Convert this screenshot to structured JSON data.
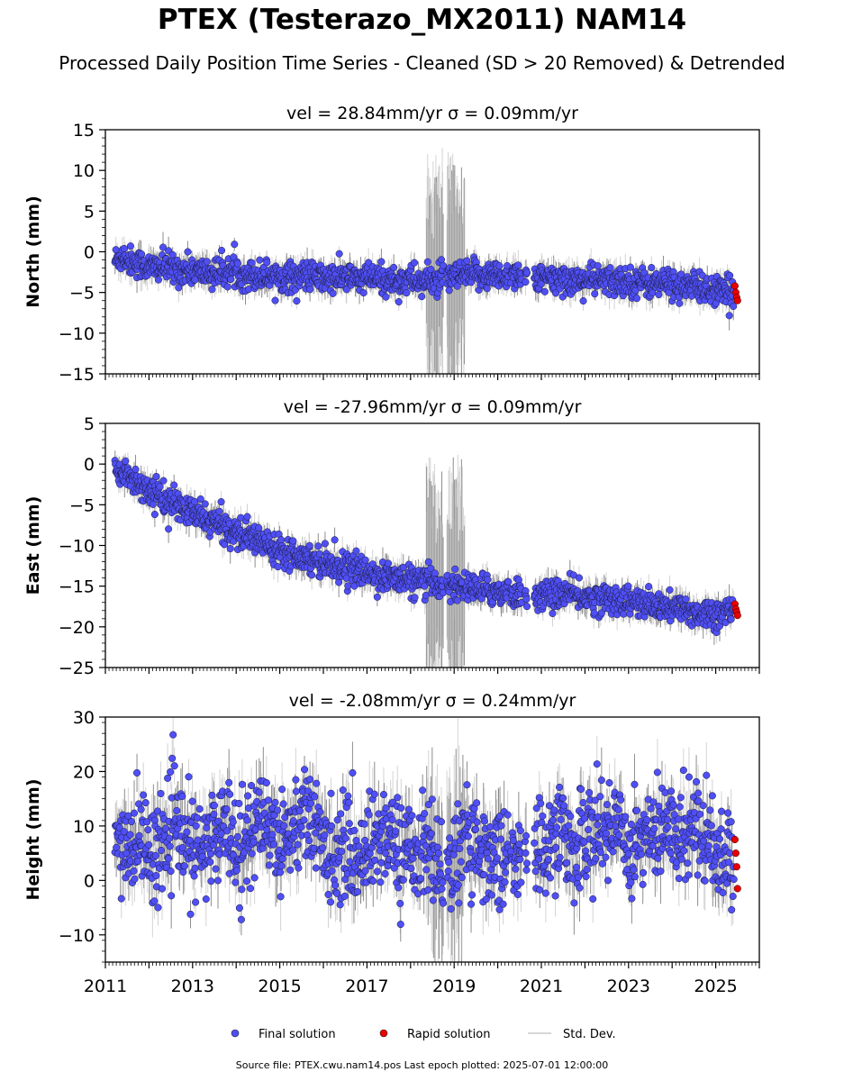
{
  "title": "PTEX (Testerazo_MX2011) NAM14",
  "subtitle": "Processed Daily Position Time Series - Cleaned (SD > 20 Removed) & Detrended",
  "footer": "Source file: PTEX.cwu.nam14.pos  Last epoch plotted: 2025-07-01 12:00:00",
  "legend": {
    "final": "Final solution",
    "rapid": "Rapid solution",
    "std": "Std. Dev."
  },
  "colors": {
    "final": "#4f4ff5",
    "rapid": "#e80000",
    "std": "#707070",
    "std_light": "#c8c8c8"
  },
  "chart_data": [
    {
      "type": "scatter",
      "component": "north",
      "title": "vel = 28.84mm/yr   σ = 0.09mm/yr",
      "ylabel": "North (mm)",
      "xlim": [
        2011.0,
        2026.0
      ],
      "ylim": [
        -15,
        15
      ],
      "yticks": [
        -15,
        -10,
        -5,
        0,
        5,
        10,
        15
      ],
      "xticks": [
        2011,
        2013,
        2015,
        2017,
        2019,
        2021,
        2023,
        2025
      ],
      "series": [
        {
          "name": "Final solution",
          "x": [
            2011.25,
            2011.4,
            2011.6,
            2011.8,
            2012.0,
            2012.3,
            2012.6,
            2012.9,
            2013.2,
            2013.5,
            2013.8,
            2014.1,
            2014.4,
            2014.7,
            2015.0,
            2015.3,
            2015.6,
            2015.9,
            2016.2,
            2016.5,
            2016.8,
            2017.1,
            2017.4,
            2017.7,
            2018.0,
            2018.3,
            2018.6,
            2018.9,
            2019.2,
            2019.5,
            2019.8,
            2020.1,
            2020.4,
            2020.9,
            2021.2,
            2021.5,
            2021.8,
            2022.1,
            2022.4,
            2022.7,
            2023.0,
            2023.3,
            2023.6,
            2023.9,
            2024.2,
            2024.5,
            2024.8,
            2025.1,
            2025.4
          ],
          "y": [
            -1.0,
            -0.5,
            -1.2,
            -1.5,
            -2.0,
            -1.8,
            -2.2,
            -2.3,
            -2.5,
            -2.7,
            -2.4,
            -2.6,
            -2.9,
            -2.8,
            -3.0,
            -3.1,
            -2.9,
            -3.2,
            -3.3,
            -3.1,
            -3.4,
            -3.2,
            -3.5,
            -3.6,
            -3.4,
            -3.7,
            -3.5,
            -3.2,
            -3.0,
            -2.8,
            -2.9,
            -3.0,
            -2.6,
            -3.4,
            -3.5,
            -3.3,
            -3.6,
            -3.4,
            -3.5,
            -3.7,
            -3.6,
            -3.8,
            -3.9,
            -3.8,
            -4.2,
            -4.3,
            -4.6,
            -5.0,
            -5.2
          ]
        },
        {
          "name": "Rapid solution",
          "x": [
            2025.44,
            2025.46,
            2025.48,
            2025.5
          ],
          "y": [
            -4.2,
            -5.0,
            -5.6,
            -6.0
          ]
        }
      ]
    },
    {
      "type": "scatter",
      "component": "east",
      "title": "vel = -27.96mm/yr   σ = 0.09mm/yr",
      "ylabel": "East (mm)",
      "xlim": [
        2011.0,
        2026.0
      ],
      "ylim": [
        -25,
        5
      ],
      "yticks": [
        -25,
        -20,
        -15,
        -10,
        -5,
        0,
        5
      ],
      "xticks": [
        2011,
        2013,
        2015,
        2017,
        2019,
        2021,
        2023,
        2025
      ],
      "series": [
        {
          "name": "Final solution",
          "x": [
            2011.25,
            2011.4,
            2011.6,
            2011.8,
            2012.0,
            2012.3,
            2012.6,
            2012.9,
            2013.2,
            2013.5,
            2013.8,
            2014.1,
            2014.4,
            2014.7,
            2015.0,
            2015.3,
            2015.6,
            2015.9,
            2016.2,
            2016.5,
            2016.8,
            2017.1,
            2017.4,
            2017.7,
            2018.0,
            2018.3,
            2018.6,
            2018.9,
            2019.2,
            2019.5,
            2019.8,
            2020.1,
            2020.4,
            2020.9,
            2021.2,
            2021.5,
            2021.8,
            2022.1,
            2022.4,
            2022.7,
            2023.0,
            2023.3,
            2023.6,
            2023.9,
            2024.2,
            2024.5,
            2024.8,
            2025.1,
            2025.4
          ],
          "y": [
            -0.2,
            -1.0,
            -1.8,
            -2.5,
            -3.2,
            -4.2,
            -5.0,
            -5.8,
            -6.5,
            -7.2,
            -7.9,
            -8.6,
            -9.2,
            -9.8,
            -10.4,
            -10.9,
            -11.4,
            -11.9,
            -12.3,
            -12.7,
            -13.1,
            -13.5,
            -13.8,
            -14.1,
            -14.4,
            -14.6,
            -14.6,
            -14.9,
            -15.1,
            -15.3,
            -15.5,
            -15.7,
            -15.9,
            -16.2,
            -16.0,
            -15.8,
            -16.2,
            -16.4,
            -16.6,
            -16.5,
            -16.9,
            -17.2,
            -17.5,
            -17.7,
            -17.9,
            -18.2,
            -18.3,
            -18.3,
            -18.2
          ]
        },
        {
          "name": "Rapid solution",
          "x": [
            2025.44,
            2025.46,
            2025.48,
            2025.5
          ],
          "y": [
            -17.2,
            -17.8,
            -18.2,
            -18.6
          ]
        }
      ]
    },
    {
      "type": "scatter",
      "component": "height",
      "title": "vel = -2.08mm/yr   σ = 0.24mm/yr",
      "ylabel": "Height (mm)",
      "xlim": [
        2011.0,
        2026.0
      ],
      "ylim": [
        -15,
        30
      ],
      "yticks": [
        -10,
        0,
        10,
        20,
        30
      ],
      "xticks": [
        2011,
        2013,
        2015,
        2017,
        2019,
        2021,
        2023,
        2025
      ],
      "series": [
        {
          "name": "Final solution",
          "x": [
            2011.25,
            2011.4,
            2011.6,
            2011.8,
            2012.0,
            2012.3,
            2012.6,
            2012.9,
            2013.2,
            2013.5,
            2013.8,
            2014.1,
            2014.4,
            2014.7,
            2015.0,
            2015.3,
            2015.6,
            2015.9,
            2016.2,
            2016.5,
            2016.8,
            2017.1,
            2017.4,
            2017.7,
            2018.0,
            2018.3,
            2018.6,
            2018.9,
            2019.2,
            2019.5,
            2019.8,
            2020.1,
            2020.4,
            2020.9,
            2021.2,
            2021.5,
            2021.8,
            2022.1,
            2022.4,
            2022.7,
            2023.0,
            2023.3,
            2023.6,
            2023.9,
            2024.2,
            2024.5,
            2024.8,
            2025.1,
            2025.4
          ],
          "y": [
            6,
            8,
            5,
            9,
            4,
            7,
            10,
            6,
            5,
            8,
            11,
            6,
            9,
            12,
            7,
            10,
            13,
            8,
            5,
            6,
            4,
            7,
            9,
            6,
            5,
            7,
            3,
            2,
            6,
            8,
            4,
            5,
            3,
            6,
            7,
            9,
            5,
            10,
            8,
            12,
            6,
            9,
            7,
            10,
            8,
            11,
            9,
            4,
            5
          ]
        },
        {
          "name": "Rapid solution",
          "x": [
            2025.44,
            2025.46,
            2025.48,
            2025.5
          ],
          "y": [
            7.5,
            5.0,
            2.5,
            -1.5
          ]
        }
      ]
    }
  ]
}
